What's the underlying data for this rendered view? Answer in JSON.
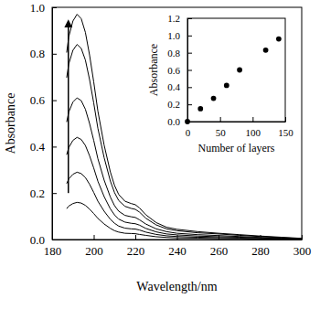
{
  "chart_data": [
    {
      "type": "line",
      "x_label": "Wavelength/nm",
      "y_label": "Absorbance",
      "x": [
        187,
        188,
        190,
        192,
        194,
        196,
        198,
        200,
        202,
        205,
        208,
        210,
        212,
        215,
        218,
        220,
        222,
        225,
        230,
        235,
        240,
        250,
        260,
        270,
        280,
        290,
        300
      ],
      "series": [
        {
          "color": "#000000",
          "values": [
            0.133,
            0.144,
            0.155,
            0.16,
            0.157,
            0.147,
            0.131,
            0.112,
            0.091,
            0.067,
            0.048,
            0.038,
            0.032,
            0.027,
            0.026,
            0.025,
            0.022,
            0.018,
            0.012,
            0.009,
            0.007,
            0.006,
            0.004,
            0.004,
            0.002,
            0.002,
            0.001
          ]
        },
        {
          "color": "#000000",
          "values": [
            0.241,
            0.261,
            0.281,
            0.29,
            0.284,
            0.267,
            0.238,
            0.203,
            0.165,
            0.122,
            0.087,
            0.07,
            0.058,
            0.049,
            0.046,
            0.045,
            0.041,
            0.032,
            0.022,
            0.016,
            0.013,
            0.01,
            0.008,
            0.006,
            0.004,
            0.003,
            0.001
          ]
        },
        {
          "color": "#000000",
          "values": [
            0.365,
            0.396,
            0.427,
            0.44,
            0.431,
            0.405,
            0.361,
            0.308,
            0.251,
            0.185,
            0.132,
            0.106,
            0.088,
            0.075,
            0.07,
            0.068,
            0.062,
            0.048,
            0.033,
            0.024,
            0.02,
            0.015,
            0.012,
            0.01,
            0.007,
            0.004,
            0.002
          ]
        },
        {
          "color": "#000000",
          "values": [
            0.506,
            0.549,
            0.592,
            0.61,
            0.598,
            0.561,
            0.5,
            0.427,
            0.348,
            0.256,
            0.183,
            0.146,
            0.122,
            0.104,
            0.098,
            0.095,
            0.085,
            0.067,
            0.046,
            0.034,
            0.027,
            0.021,
            0.017,
            0.013,
            0.009,
            0.006,
            0.003
          ]
        },
        {
          "color": "#000000",
          "values": [
            0.697,
            0.756,
            0.815,
            0.84,
            0.823,
            0.773,
            0.689,
            0.588,
            0.479,
            0.353,
            0.252,
            0.202,
            0.168,
            0.143,
            0.134,
            0.13,
            0.118,
            0.092,
            0.063,
            0.046,
            0.038,
            0.029,
            0.024,
            0.018,
            0.013,
            0.008,
            0.004
          ]
        },
        {
          "color": "#000000",
          "values": [
            0.805,
            0.873,
            0.941,
            0.97,
            0.951,
            0.892,
            0.795,
            0.679,
            0.553,
            0.407,
            0.291,
            0.233,
            0.194,
            0.165,
            0.155,
            0.15,
            0.136,
            0.107,
            0.073,
            0.053,
            0.044,
            0.034,
            0.027,
            0.021,
            0.015,
            0.01,
            0.005
          ]
        }
      ],
      "xlim": [
        180,
        300
      ],
      "xticks": [
        180,
        200,
        220,
        240,
        260,
        280,
        300
      ],
      "ylim": [
        0,
        1.0
      ],
      "yticks": [
        {
          "value": 0,
          "label": "0.0"
        },
        0.2,
        0.4,
        0.6,
        0.8,
        {
          "value": 1.0,
          "label": "1.0"
        }
      ]
    },
    {
      "type": "scatter",
      "x_label": "Number of layers",
      "y_label": "Absorbance",
      "x": [
        0,
        20,
        40,
        60,
        80,
        120,
        140
      ],
      "values": [
        0.0,
        0.15,
        0.27,
        0.42,
        0.6,
        0.83,
        0.96
      ],
      "color": "#000000",
      "marker": "circle",
      "xlim": [
        0,
        150
      ],
      "xticks": [
        0,
        50,
        100,
        150
      ],
      "ylim": [
        0,
        1.2
      ],
      "yticks": [
        {
          "value": 0,
          "label": "0.0"
        },
        0.2,
        0.4,
        0.6,
        0.8,
        {
          "value": 1.0,
          "label": "1.0"
        },
        1.2
      ]
    }
  ]
}
